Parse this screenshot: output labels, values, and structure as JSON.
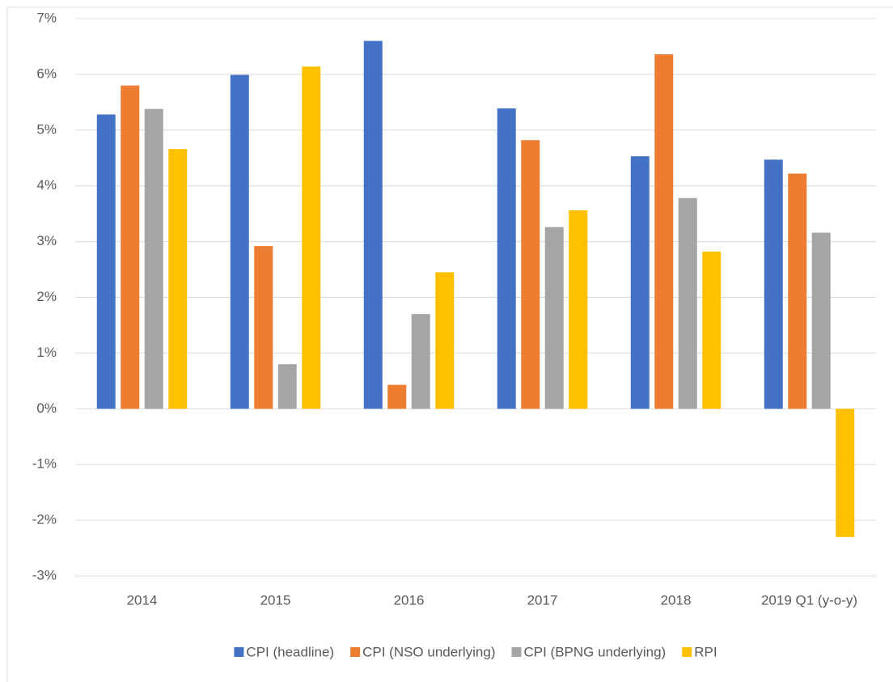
{
  "chart_data": {
    "type": "bar",
    "categories": [
      "2014",
      "2015",
      "2016",
      "2017",
      "2018",
      "2019 Q1 (y-o-y)"
    ],
    "series": [
      {
        "name": "CPI (headline)",
        "color": "#4472c4",
        "values": [
          5.28,
          5.99,
          6.6,
          5.39,
          4.53,
          4.47
        ]
      },
      {
        "name": "CPI (NSO underlying)",
        "color": "#ed7d31",
        "values": [
          5.8,
          2.92,
          0.43,
          4.82,
          6.36,
          4.22
        ]
      },
      {
        "name": "CPI (BPNG underlying)",
        "color": "#a5a5a5",
        "values": [
          5.38,
          0.8,
          1.7,
          3.26,
          3.78,
          3.16
        ]
      },
      {
        "name": "RPI",
        "color": "#ffc000",
        "values": [
          4.66,
          6.14,
          2.45,
          3.56,
          2.82,
          -2.3
        ]
      }
    ],
    "ylim": [
      -3,
      7
    ],
    "yticks": [
      {
        "value": -3,
        "label": "-3%"
      },
      {
        "value": -2,
        "label": "-2%"
      },
      {
        "value": -1,
        "label": "-1%"
      },
      {
        "value": 0,
        "label": "0%"
      },
      {
        "value": 1,
        "label": "1%"
      },
      {
        "value": 2,
        "label": "2%"
      },
      {
        "value": 3,
        "label": "3%"
      },
      {
        "value": 4,
        "label": "4%"
      },
      {
        "value": 5,
        "label": "5%"
      },
      {
        "value": 6,
        "label": "6%"
      },
      {
        "value": 7,
        "label": "7%"
      }
    ],
    "grid": true,
    "legend": "bottom"
  }
}
